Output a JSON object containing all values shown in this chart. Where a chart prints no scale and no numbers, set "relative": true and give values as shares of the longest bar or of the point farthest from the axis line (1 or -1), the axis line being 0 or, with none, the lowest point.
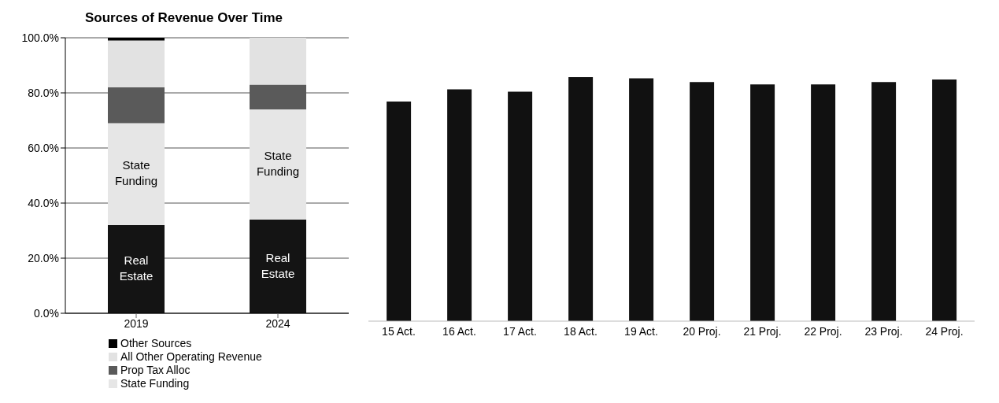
{
  "chart_data": [
    {
      "type": "bar",
      "title": "Sources of Revenue Over Time",
      "categories": [
        "2019",
        "2024"
      ],
      "stacked": true,
      "series": [
        {
          "name": "Real Estate",
          "color": "#141414",
          "values": [
            32,
            34
          ]
        },
        {
          "name": "State Funding",
          "color": "#e6e6e6",
          "values": [
            37,
            40
          ]
        },
        {
          "name": "Prop Tax Alloc",
          "color": "#5a5a5a",
          "values": [
            13,
            9
          ]
        },
        {
          "name": "All Other Operating Revenue",
          "color": "#e2e2e2",
          "values": [
            17,
            17
          ]
        },
        {
          "name": "Other Sources",
          "color": "#000000",
          "values": [
            1,
            0
          ]
        }
      ],
      "ylim": [
        0,
        100
      ],
      "yticks": [
        {
          "value": 0,
          "label": "0.0%"
        },
        {
          "value": 20,
          "label": "20.0%"
        },
        {
          "value": 40,
          "label": "40.0%"
        },
        {
          "value": 60,
          "label": "60.0%"
        },
        {
          "value": 80,
          "label": "80.0%"
        },
        {
          "value": 100,
          "label": "100.0%"
        }
      ],
      "grid": "y",
      "legend": "bottom"
    },
    {
      "type": "bar",
      "relative": true,
      "categories": [
        "15 Act.",
        "16 Act.",
        "17 Act.",
        "18 Act.",
        "19 Act.",
        "20 Proj.",
        "21 Proj.",
        "22 Proj.",
        "23 Proj.",
        "24 Proj."
      ],
      "values": [
        0.9,
        0.95,
        0.94,
        1,
        0.995,
        0.98,
        0.97,
        0.97,
        0.98,
        0.99
      ],
      "color": "#111111"
    }
  ]
}
